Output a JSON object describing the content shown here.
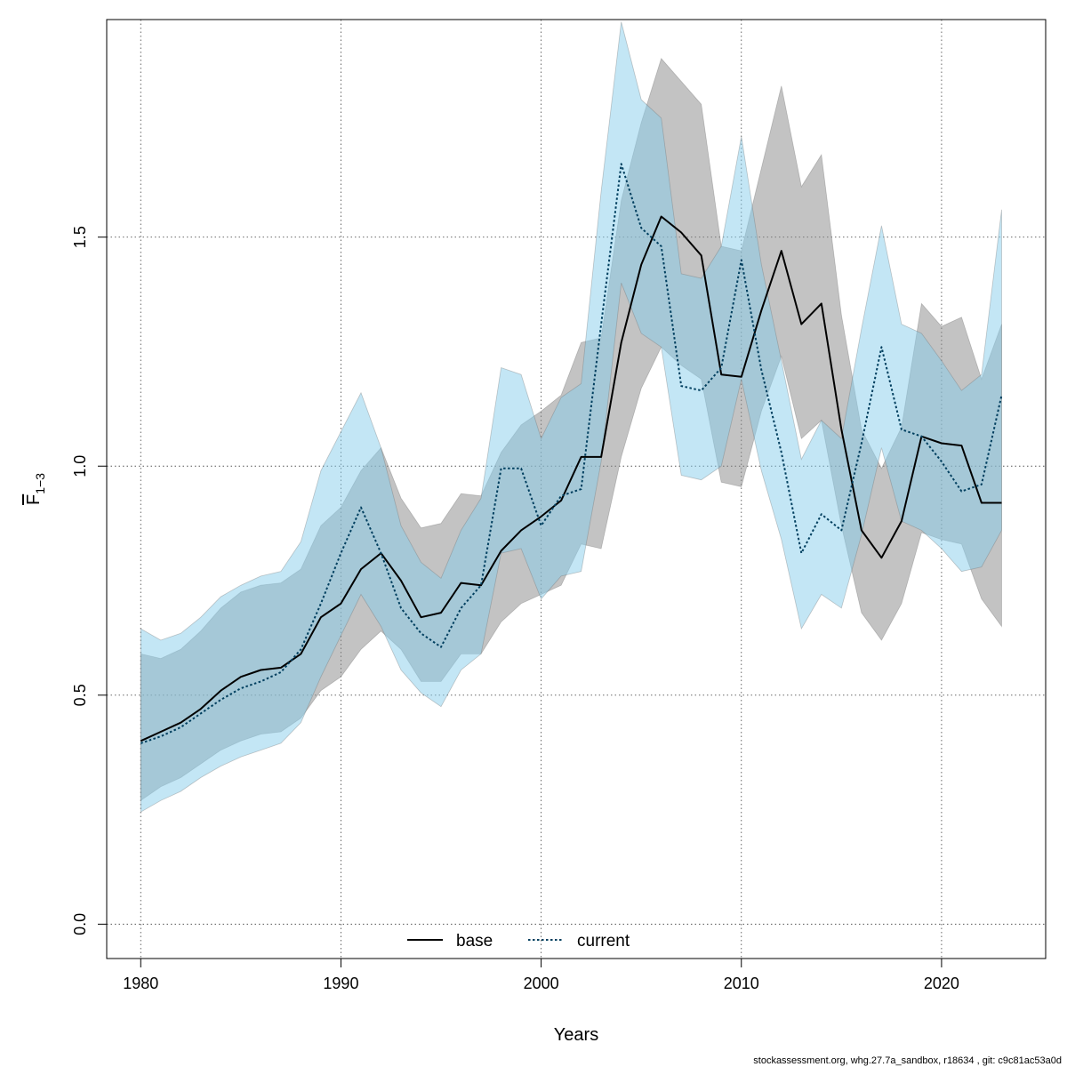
{
  "chart_data": {
    "type": "line",
    "xlabel": "Years",
    "ylabel_main": "F",
    "ylabel_sub": "1−3",
    "xlim": [
      1978.3,
      2025.2
    ],
    "ylim": [
      -0.075,
      1.975
    ],
    "x_ticks": [
      1980,
      1990,
      2000,
      2010,
      2020
    ],
    "y_ticks": [
      0.0,
      0.5,
      1.0,
      1.5
    ],
    "y_tick_labels": [
      "0.0",
      "0.5",
      "1.0",
      "1.5"
    ],
    "grid": true,
    "legend_position": "bottom-center",
    "years": [
      1980,
      1981,
      1982,
      1983,
      1984,
      1985,
      1986,
      1987,
      1988,
      1989,
      1990,
      1991,
      1992,
      1993,
      1994,
      1995,
      1996,
      1997,
      1998,
      1999,
      2000,
      2001,
      2002,
      2003,
      2004,
      2005,
      2006,
      2007,
      2008,
      2009,
      2010,
      2011,
      2012,
      2013,
      2014,
      2015,
      2016,
      2017,
      2018,
      2019,
      2020,
      2021,
      2022,
      2023
    ],
    "series": [
      {
        "name": "base",
        "color": "#000000",
        "band_color": "#888888",
        "line_style": "solid",
        "values": [
          0.4,
          0.42,
          0.44,
          0.47,
          0.51,
          0.54,
          0.555,
          0.56,
          0.59,
          0.67,
          0.7,
          0.775,
          0.81,
          0.75,
          0.67,
          0.68,
          0.745,
          0.74,
          0.815,
          0.86,
          0.89,
          0.925,
          1.02,
          1.02,
          1.27,
          1.44,
          1.545,
          1.51,
          1.46,
          1.2,
          1.195,
          1.34,
          1.47,
          1.31,
          1.355,
          1.08,
          0.86,
          0.8,
          0.88,
          1.065,
          1.05,
          1.045,
          0.92,
          0.92
        ],
        "lower": [
          0.27,
          0.3,
          0.32,
          0.35,
          0.38,
          0.4,
          0.415,
          0.42,
          0.45,
          0.51,
          0.54,
          0.6,
          0.64,
          0.6,
          0.53,
          0.53,
          0.59,
          0.59,
          0.66,
          0.7,
          0.72,
          0.74,
          0.83,
          0.82,
          1.02,
          1.17,
          1.26,
          1.22,
          1.19,
          0.965,
          0.955,
          1.12,
          1.24,
          1.06,
          1.1,
          0.87,
          0.68,
          0.62,
          0.7,
          0.855,
          0.84,
          0.83,
          0.71,
          0.65
        ],
        "upper": [
          0.59,
          0.58,
          0.6,
          0.64,
          0.69,
          0.725,
          0.74,
          0.745,
          0.775,
          0.87,
          0.91,
          0.99,
          1.04,
          0.93,
          0.865,
          0.875,
          0.94,
          0.935,
          1.03,
          1.09,
          1.12,
          1.155,
          1.27,
          1.28,
          1.58,
          1.75,
          1.89,
          1.84,
          1.79,
          1.48,
          1.47,
          1.65,
          1.83,
          1.61,
          1.68,
          1.33,
          1.08,
          0.995,
          1.085,
          1.355,
          1.305,
          1.325,
          1.19,
          1.31
        ]
      },
      {
        "name": "current",
        "color": "#003f5f",
        "band_color": "#87ceeb",
        "line_style": "dotted",
        "values": [
          0.395,
          0.41,
          0.43,
          0.46,
          0.49,
          0.515,
          0.53,
          0.55,
          0.6,
          0.7,
          0.81,
          0.91,
          0.81,
          0.69,
          0.635,
          0.605,
          0.69,
          0.74,
          0.995,
          0.995,
          0.87,
          0.935,
          0.95,
          1.31,
          1.66,
          1.52,
          1.48,
          1.175,
          1.165,
          1.215,
          1.45,
          1.21,
          1.03,
          0.81,
          0.895,
          0.86,
          1.05,
          1.26,
          1.08,
          1.065,
          1.01,
          0.945,
          0.96,
          1.155
        ],
        "lower": [
          0.245,
          0.27,
          0.29,
          0.32,
          0.345,
          0.365,
          0.38,
          0.395,
          0.44,
          0.54,
          0.63,
          0.72,
          0.65,
          0.555,
          0.505,
          0.475,
          0.555,
          0.59,
          0.81,
          0.82,
          0.71,
          0.76,
          0.77,
          1.01,
          1.4,
          1.29,
          1.26,
          0.98,
          0.97,
          1.0,
          1.19,
          0.99,
          0.84,
          0.645,
          0.72,
          0.69,
          0.85,
          1.04,
          0.88,
          0.86,
          0.82,
          0.77,
          0.78,
          0.86
        ],
        "upper": [
          0.645,
          0.62,
          0.635,
          0.67,
          0.715,
          0.74,
          0.76,
          0.77,
          0.835,
          0.99,
          1.075,
          1.16,
          1.04,
          0.87,
          0.79,
          0.755,
          0.86,
          0.93,
          1.215,
          1.2,
          1.06,
          1.15,
          1.18,
          1.6,
          1.97,
          1.8,
          1.76,
          1.42,
          1.41,
          1.48,
          1.72,
          1.44,
          1.23,
          1.015,
          1.1,
          1.06,
          1.3,
          1.525,
          1.31,
          1.29,
          1.23,
          1.165,
          1.2,
          1.56
        ]
      }
    ]
  },
  "footer": "stockassessment.org, whg.27.7a_sandbox, r18634 , git: c9c81ac53a0d"
}
